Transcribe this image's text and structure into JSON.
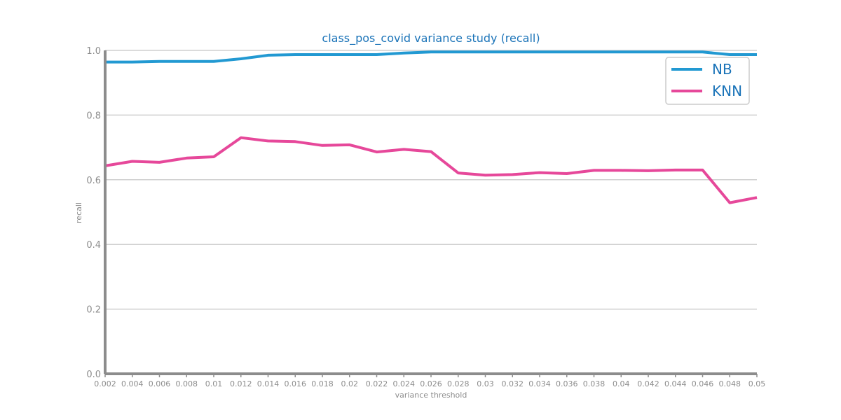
{
  "chart_data": {
    "type": "line",
    "title": "class_pos_covid variance study (recall)",
    "xlabel": "variance threshold",
    "ylabel": "recall",
    "ylim": [
      0,
      1
    ],
    "grid": "horizontal",
    "legend_position": "top-right",
    "x": [
      0.002,
      0.004,
      0.006,
      0.008,
      0.01,
      0.012,
      0.014,
      0.016,
      0.018,
      0.02,
      0.022,
      0.024,
      0.026,
      0.028,
      0.03,
      0.032,
      0.034,
      0.036,
      0.038,
      0.04,
      0.042,
      0.044,
      0.046,
      0.048,
      0.05
    ],
    "x_tick_labels": [
      "0.002",
      "0.004",
      "0.006",
      "0.008",
      "0.01",
      "0.012",
      "0.014",
      "0.016",
      "0.018",
      "0.02",
      "0.022",
      "0.024",
      "0.026",
      "0.028",
      "0.03",
      "0.032",
      "0.034",
      "0.036",
      "0.038",
      "0.04",
      "0.042",
      "0.044",
      "0.046",
      "0.048",
      "0.05"
    ],
    "y_ticks": [
      0.0,
      0.2,
      0.4,
      0.6,
      0.8,
      1.0
    ],
    "y_tick_labels": [
      "0.0",
      "0.2",
      "0.4",
      "0.6",
      "0.8",
      "1.0"
    ],
    "series": [
      {
        "name": "NB",
        "color": "#2299d2",
        "values": [
          0.964,
          0.964,
          0.966,
          0.966,
          0.966,
          0.974,
          0.985,
          0.987,
          0.987,
          0.987,
          0.987,
          0.992,
          0.995,
          0.995,
          0.995,
          0.995,
          0.995,
          0.995,
          0.995,
          0.995,
          0.995,
          0.995,
          0.995,
          0.987,
          0.987
        ]
      },
      {
        "name": "KNN",
        "color": "#e6489a",
        "values": [
          0.643,
          0.657,
          0.654,
          0.667,
          0.671,
          0.73,
          0.72,
          0.718,
          0.706,
          0.708,
          0.686,
          0.694,
          0.687,
          0.621,
          0.614,
          0.616,
          0.622,
          0.619,
          0.629,
          0.629,
          0.628,
          0.63,
          0.63,
          0.529,
          0.545
        ]
      }
    ]
  }
}
